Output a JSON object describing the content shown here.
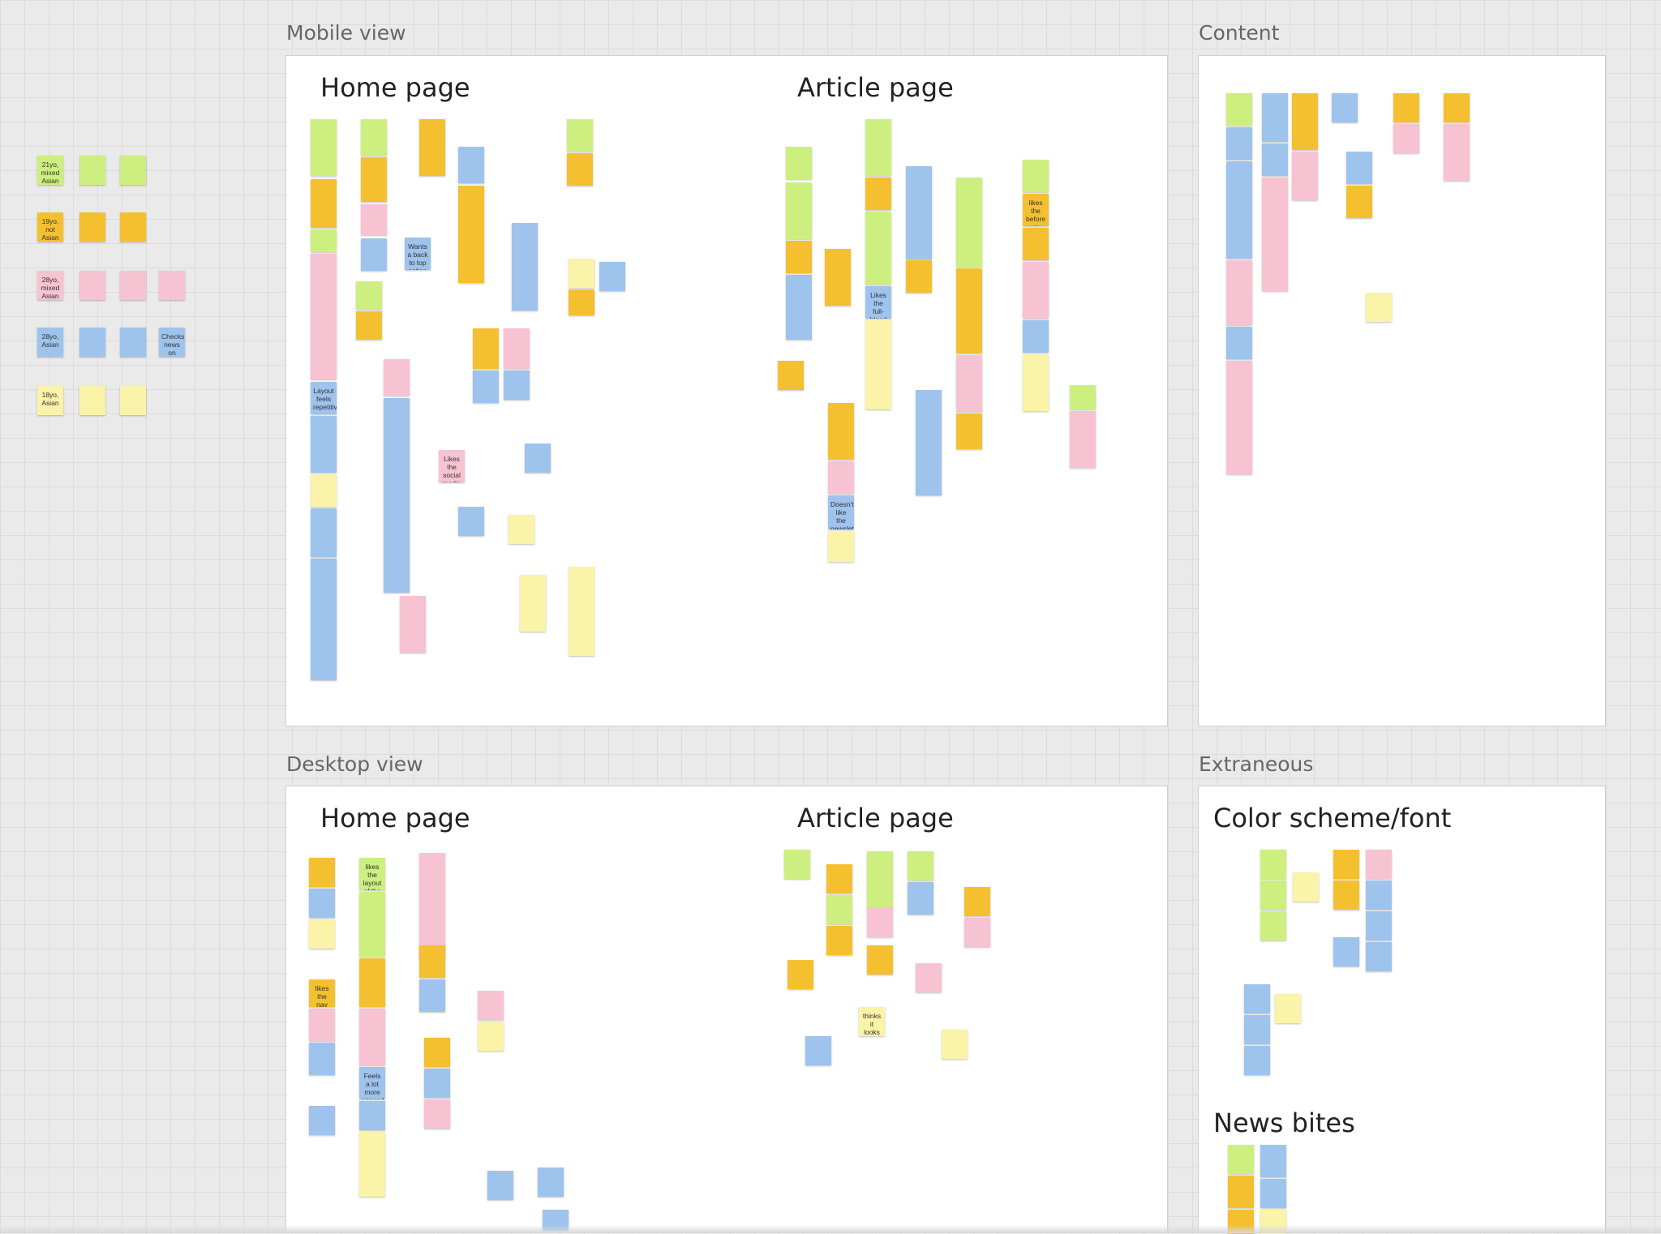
{
  "frames": {
    "mobile": {
      "label": "Mobile view",
      "home": "Home page",
      "article": "Article page"
    },
    "desktop": {
      "label": "Desktop view",
      "home": "Home page",
      "article": "Article page"
    },
    "content": {
      "label": "Content"
    },
    "extraneous": {
      "label": "Extraneous",
      "color_font": "Color scheme/font",
      "news_bites": "News bites"
    }
  },
  "personas": [
    "21yo, mixed Asian",
    "19yo, not Asian",
    "28yo, mixed Asian",
    "28yo, Asian",
    "18yo, Asian"
  ],
  "legible_notes": {
    "mobile_home": {
      "layout_repetitive": "Layout feels repetitive",
      "back_to_top": "Wants a back to top option",
      "social_media": "Likes the social media links included"
    },
    "mobile_article": {
      "full_bleed": "Likes the full-bleed images",
      "newsletter": "Doesn't like the newsletter insert again",
      "likes_the": "likes the before you read section"
    },
    "desktop_home": {
      "nav_bar": "likes the nav bar",
      "likes_layout": "likes the layout of the page",
      "more_spaced": "Feels a lot more spaced out"
    },
    "desktop_article": {
      "thinks_fine": "thinks it looks fine"
    },
    "persona_notes": {
      "checks_news": "Checks news on mobile"
    }
  },
  "colors": {
    "yellow": "#f5c030",
    "green": "#cdef7f",
    "pink": "#f7c3d2",
    "blue": "#9ec3ec",
    "light_yellow": "#faf3a8"
  }
}
